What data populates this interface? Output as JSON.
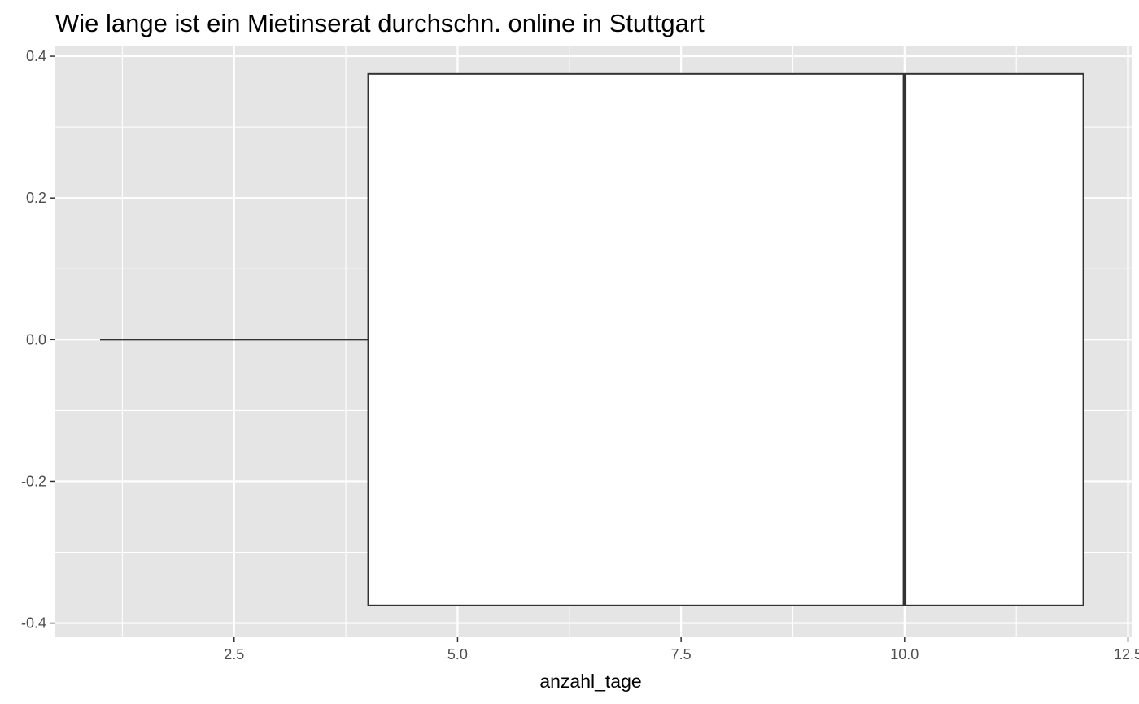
{
  "chart_data": {
    "type": "boxplot",
    "title": "Wie lange ist ein Mietinserat durchschn. online in Stuttgart",
    "xlabel": "anzahl_tage",
    "ylabel": "",
    "xlim": [
      0.5,
      12.55
    ],
    "ylim": [
      -0.42,
      0.415
    ],
    "x_ticks": [
      2.5,
      5.0,
      7.5,
      10.0,
      12.5
    ],
    "x_tick_labels": [
      "2.5",
      "5.0",
      "7.5",
      "10.0",
      "12.5"
    ],
    "y_ticks": [
      0.4,
      0.2,
      0.0,
      -0.2,
      -0.4
    ],
    "y_tick_labels": [
      "0.4",
      "0.2",
      "0.0",
      "-0.2",
      "-0.4"
    ],
    "grid": true,
    "box": {
      "min": 1,
      "q1": 4,
      "median": 10,
      "q3": 12,
      "max": 12,
      "y_center": 0.0,
      "y_half_width": 0.375
    },
    "colors": {
      "panel": "#e5e5e5",
      "grid": "#ffffff",
      "box_fill": "#ffffff",
      "box_stroke": "#333333"
    }
  }
}
